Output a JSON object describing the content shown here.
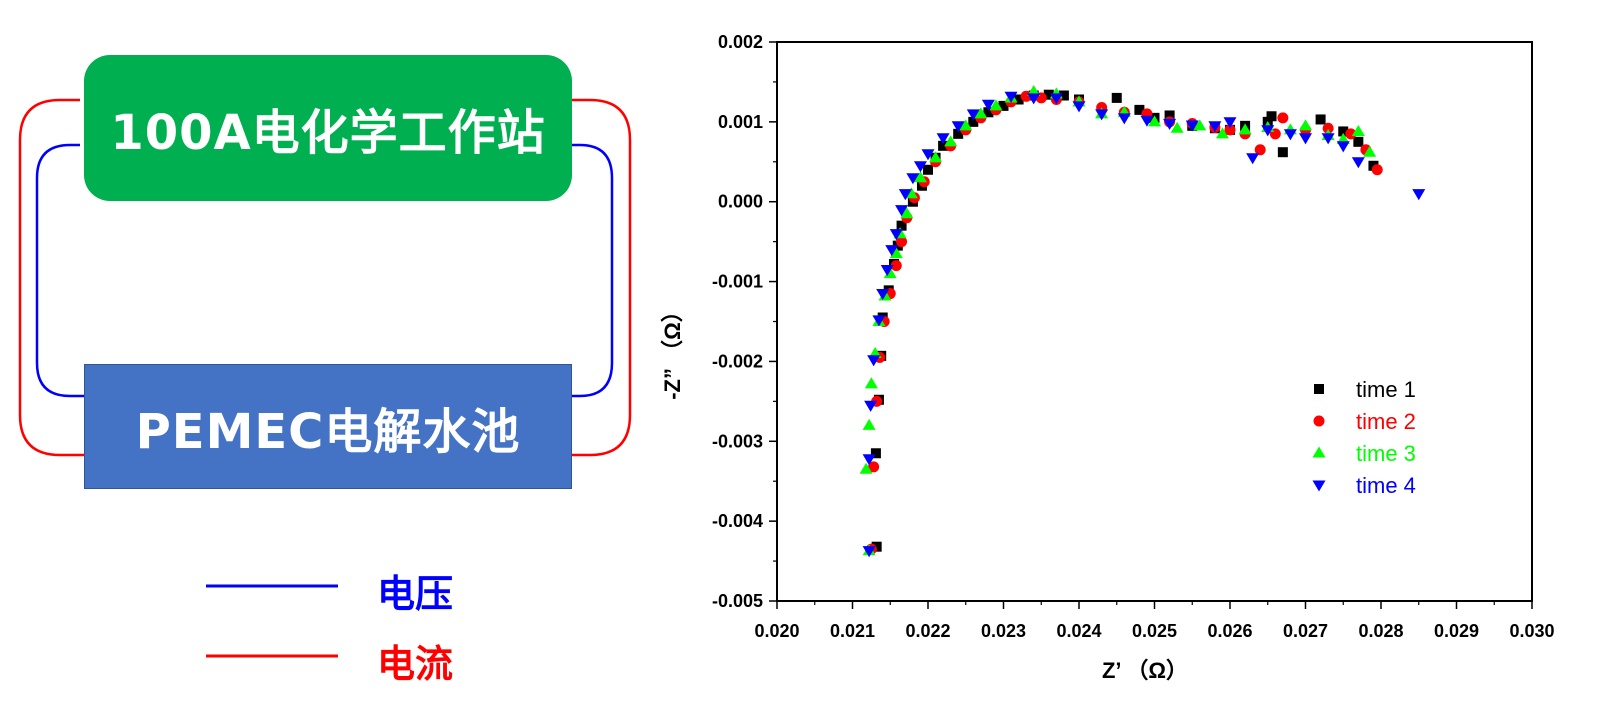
{
  "diagram": {
    "station_label": "100A电化学工作站",
    "cell_label": "PEMEC电解水池",
    "key": [
      {
        "label": "电压",
        "color": "#0000FF"
      },
      {
        "label": "电流",
        "color": "#FF0000"
      }
    ],
    "colors": {
      "station": "#00AF50",
      "cell": "#4472C4",
      "voltage": "#0000FF",
      "current": "#FF0000"
    }
  },
  "chart_data": {
    "type": "scatter",
    "xlabel": "Z’ （Ω）",
    "ylabel": "-Z” （Ω）",
    "xlim": [
      0.02,
      0.03
    ],
    "ylim": [
      -0.005,
      0.002
    ],
    "xticks": [
      "0.020",
      "0.021",
      "0.022",
      "0.023",
      "0.024",
      "0.025",
      "0.026",
      "0.027",
      "0.028",
      "0.029",
      "0.030"
    ],
    "yticks": [
      "0.002",
      "0.001",
      "0.000",
      "-0.001",
      "-0.002",
      "-0.003",
      "-0.004",
      "-0.005"
    ],
    "xtick_values": [
      0.02,
      0.021,
      0.022,
      0.023,
      0.024,
      0.025,
      0.026,
      0.027,
      0.028,
      0.029,
      0.03
    ],
    "ytick_values": [
      0.002,
      0.001,
      0.0,
      -0.001,
      -0.002,
      -0.003,
      -0.004,
      -0.005
    ],
    "legend_position": "lower-right",
    "series": [
      {
        "name": "time 1",
        "color": "#000000",
        "marker": "square",
        "points": [
          [
            0.02132,
            -0.00432
          ],
          [
            0.02131,
            -0.00315
          ],
          [
            0.02135,
            -0.00248
          ],
          [
            0.02138,
            -0.00193
          ],
          [
            0.0214,
            -0.00145
          ],
          [
            0.02148,
            -0.00111
          ],
          [
            0.02155,
            -0.00078
          ],
          [
            0.0216,
            -0.00055
          ],
          [
            0.02165,
            -0.0003
          ],
          [
            0.0218,
            0.0
          ],
          [
            0.02192,
            0.0002
          ],
          [
            0.022,
            0.0004
          ],
          [
            0.0221,
            0.00055
          ],
          [
            0.0222,
            0.0007
          ],
          [
            0.0224,
            0.00085
          ],
          [
            0.0226,
            0.001
          ],
          [
            0.0228,
            0.00112
          ],
          [
            0.023,
            0.0012
          ],
          [
            0.0232,
            0.00128
          ],
          [
            0.0234,
            0.00133
          ],
          [
            0.0236,
            0.00134
          ],
          [
            0.0238,
            0.00133
          ],
          [
            0.024,
            0.00128
          ],
          [
            0.0245,
            0.0013
          ],
          [
            0.0248,
            0.00115
          ],
          [
            0.025,
            0.00105
          ],
          [
            0.0252,
            0.00108
          ],
          [
            0.0255,
            0.00095
          ],
          [
            0.0258,
            0.00092
          ],
          [
            0.026,
            0.0009
          ],
          [
            0.0262,
            0.00095
          ],
          [
            0.0265,
            0.001
          ],
          [
            0.02655,
            0.00107
          ],
          [
            0.0267,
            0.00062
          ],
          [
            0.0272,
            0.00103
          ],
          [
            0.0275,
            0.00088
          ],
          [
            0.0277,
            0.00075
          ],
          [
            0.0279,
            0.00045
          ]
        ]
      },
      {
        "name": "time 2",
        "color": "#FF0000",
        "marker": "circle",
        "points": [
          [
            0.02125,
            -0.00435
          ],
          [
            0.02128,
            -0.00332
          ],
          [
            0.02132,
            -0.0025
          ],
          [
            0.02136,
            -0.00195
          ],
          [
            0.02142,
            -0.0015
          ],
          [
            0.0215,
            -0.00115
          ],
          [
            0.02158,
            -0.0008
          ],
          [
            0.02165,
            -0.0005
          ],
          [
            0.02172,
            -0.0002
          ],
          [
            0.02182,
            5e-05
          ],
          [
            0.02195,
            0.00025
          ],
          [
            0.0221,
            0.0005
          ],
          [
            0.0223,
            0.0007
          ],
          [
            0.0225,
            0.0009
          ],
          [
            0.0227,
            0.00105
          ],
          [
            0.0229,
            0.00115
          ],
          [
            0.0231,
            0.00125
          ],
          [
            0.0233,
            0.00132
          ],
          [
            0.0235,
            0.0013
          ],
          [
            0.0237,
            0.00128
          ],
          [
            0.024,
            0.00125
          ],
          [
            0.0243,
            0.00118
          ],
          [
            0.0246,
            0.00112
          ],
          [
            0.0249,
            0.0011
          ],
          [
            0.0252,
            0.001
          ],
          [
            0.0255,
            0.00098
          ],
          [
            0.0258,
            0.00093
          ],
          [
            0.026,
            0.0009
          ],
          [
            0.0262,
            0.00085
          ],
          [
            0.0264,
            0.00065
          ],
          [
            0.0266,
            0.00085
          ],
          [
            0.0267,
            0.00105
          ],
          [
            0.027,
            0.0009
          ],
          [
            0.0273,
            0.00092
          ],
          [
            0.0276,
            0.00085
          ],
          [
            0.0278,
            0.00065
          ],
          [
            0.02795,
            0.0004
          ]
        ]
      },
      {
        "name": "time 3",
        "color": "#00FF00",
        "marker": "triangle-up",
        "points": [
          [
            0.02122,
            -0.00437
          ],
          [
            0.02118,
            -0.00335
          ],
          [
            0.02122,
            -0.0028
          ],
          [
            0.02125,
            -0.00228
          ],
          [
            0.0213,
            -0.0019
          ],
          [
            0.02135,
            -0.0015
          ],
          [
            0.02143,
            -0.00118
          ],
          [
            0.0215,
            -0.0009
          ],
          [
            0.02158,
            -0.00065
          ],
          [
            0.02163,
            -0.0004
          ],
          [
            0.02172,
            -0.00015
          ],
          [
            0.02178,
            0.0001
          ],
          [
            0.0219,
            0.0003
          ],
          [
            0.0221,
            0.00055
          ],
          [
            0.0223,
            0.00075
          ],
          [
            0.0225,
            0.00095
          ],
          [
            0.0227,
            0.0011
          ],
          [
            0.0229,
            0.0012
          ],
          [
            0.0231,
            0.0013
          ],
          [
            0.0234,
            0.00138
          ],
          [
            0.0237,
            0.00135
          ],
          [
            0.024,
            0.00125
          ],
          [
            0.0243,
            0.0011
          ],
          [
            0.0246,
            0.00112
          ],
          [
            0.025,
            0.001
          ],
          [
            0.0253,
            0.00092
          ],
          [
            0.0256,
            0.00095
          ],
          [
            0.0259,
            0.00085
          ],
          [
            0.0262,
            0.0009
          ],
          [
            0.0265,
            0.00093
          ],
          [
            0.0268,
            0.0009
          ],
          [
            0.027,
            0.00095
          ],
          [
            0.0273,
            0.00083
          ],
          [
            0.0275,
            0.00078
          ],
          [
            0.0277,
            0.00088
          ],
          [
            0.02785,
            0.00062
          ]
        ]
      },
      {
        "name": "time 4",
        "color": "#0000FF",
        "marker": "triangle-down",
        "points": [
          [
            0.02122,
            -0.00437
          ],
          [
            0.02122,
            -0.00322
          ],
          [
            0.02124,
            -0.00255
          ],
          [
            0.02128,
            -0.00198
          ],
          [
            0.02135,
            -0.00148
          ],
          [
            0.0214,
            -0.00115
          ],
          [
            0.02146,
            -0.00085
          ],
          [
            0.02152,
            -0.0006
          ],
          [
            0.02158,
            -0.0004
          ],
          [
            0.02165,
            -0.0001
          ],
          [
            0.0217,
            0.0001
          ],
          [
            0.0218,
            0.0003
          ],
          [
            0.0219,
            0.00045
          ],
          [
            0.022,
            0.0006
          ],
          [
            0.0222,
            0.0008
          ],
          [
            0.0224,
            0.00095
          ],
          [
            0.0226,
            0.0011
          ],
          [
            0.0228,
            0.00122
          ],
          [
            0.0231,
            0.00132
          ],
          [
            0.0234,
            0.0013
          ],
          [
            0.0237,
            0.0013
          ],
          [
            0.024,
            0.0012
          ],
          [
            0.0243,
            0.0011
          ],
          [
            0.0246,
            0.00105
          ],
          [
            0.0249,
            0.00102
          ],
          [
            0.0252,
            0.00098
          ],
          [
            0.0255,
            0.00096
          ],
          [
            0.0258,
            0.00095
          ],
          [
            0.026,
            0.001
          ],
          [
            0.0263,
            0.00055
          ],
          [
            0.0265,
            0.0009
          ],
          [
            0.0268,
            0.00085
          ],
          [
            0.027,
            0.0008
          ],
          [
            0.0273,
            0.0008
          ],
          [
            0.0275,
            0.0007
          ],
          [
            0.0277,
            0.0005
          ],
          [
            0.0285,
            0.0001
          ]
        ]
      }
    ]
  }
}
